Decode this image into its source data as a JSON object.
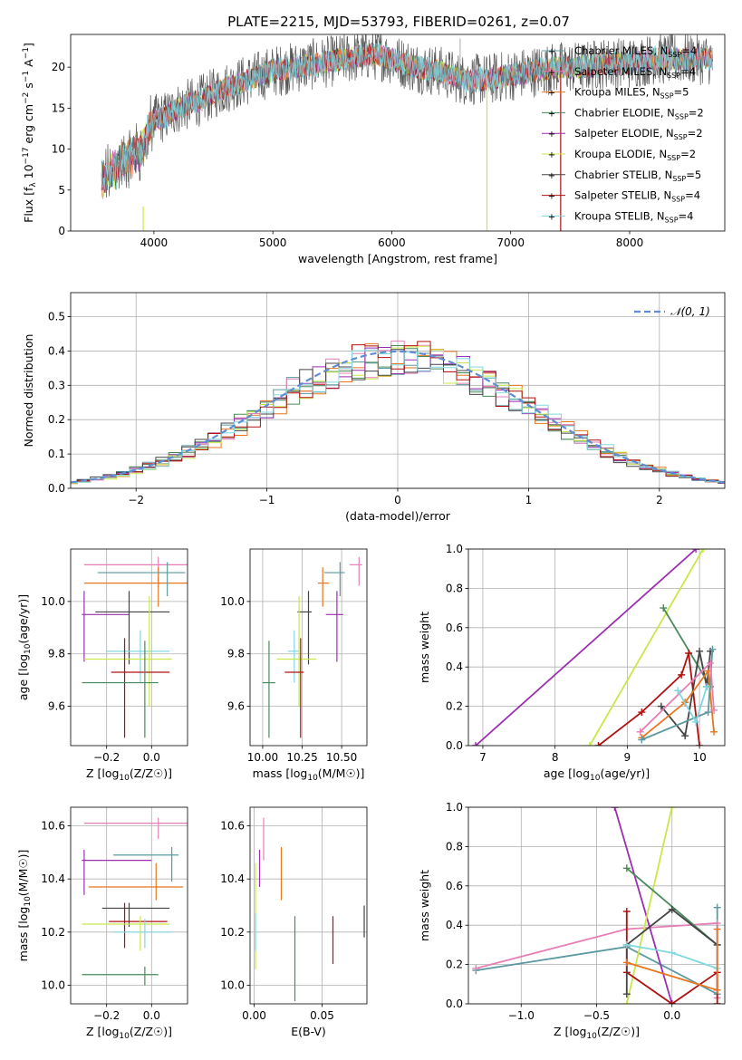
{
  "figure": {
    "title": "PLATE=2215, MJD=53793, FIBERID=0261, z=0.07"
  },
  "colors": {
    "Chabrier MILES": "#5b9aa0",
    "Salpeter MILES": "#e67fb6",
    "Kroupa MILES": "#e8761f",
    "Chabrier ELODIE": "#4a8a5a",
    "Salpeter ELODIE": "#9b2fb0",
    "Kroupa ELODIE": "#c8e84a",
    "Chabrier STELIB": "#444444",
    "Salpeter STELIB": "#b01010",
    "Kroupa STELIB": "#80d8e0",
    "normal": "#5f8dd3"
  },
  "chart_data": [
    {
      "id": "spectrum",
      "type": "line",
      "title": "PLATE=2215, MJD=53793, FIBERID=0261, z=0.07",
      "xlabel": "wavelength [Angstrom, rest frame]",
      "ylabel": "Flux [f_λ 10^-17 erg cm^-2 s^-1 A^-1]",
      "xlim": [
        3300,
        8800
      ],
      "ylim": [
        0,
        24
      ],
      "xticks": [
        4000,
        5000,
        6000,
        7000,
        8000
      ],
      "yticks": [
        0,
        5,
        10,
        15,
        20
      ],
      "grid": false,
      "legend_position": "upper-right",
      "legend": [
        {
          "model": "Chabrier MILES",
          "label": "Chabrier MILES, N",
          "nssp": "=4"
        },
        {
          "model": "Salpeter MILES",
          "label": "Salpeter MILES, N",
          "nssp": "=4"
        },
        {
          "model": "Kroupa MILES",
          "label": "Kroupa MILES, N",
          "nssp": "=5"
        },
        {
          "model": "Chabrier ELODIE",
          "label": "Chabrier ELODIE, N",
          "nssp": "=2"
        },
        {
          "model": "Salpeter ELODIE",
          "label": "Salpeter ELODIE, N",
          "nssp": "=2"
        },
        {
          "model": "Kroupa ELODIE",
          "label": "Kroupa ELODIE, N",
          "nssp": "=2"
        },
        {
          "model": "Chabrier STELIB",
          "label": "Chabrier STELIB, N",
          "nssp": "=5"
        },
        {
          "model": "Salpeter STELIB",
          "label": "Salpeter STELIB, N",
          "nssp": "=4"
        },
        {
          "model": "Kroupa STELIB",
          "label": "Kroupa STELIB, N",
          "nssp": "=4"
        }
      ],
      "continuum": {
        "x": [
          3550,
          3700,
          3900,
          4000,
          4100,
          4200,
          4400,
          4600,
          4800,
          5000,
          5200,
          5400,
          5600,
          5800,
          5900,
          6000,
          6200,
          6400,
          6600,
          6800,
          7000,
          7200,
          7400,
          7600,
          7800,
          8000,
          8200,
          8400,
          8700
        ],
        "y": [
          6,
          8,
          10,
          13.5,
          14,
          15,
          16,
          17.5,
          18.5,
          19.5,
          20,
          20.5,
          21,
          21.5,
          21.5,
          21,
          20,
          19.5,
          18.5,
          18.5,
          19,
          19.5,
          20,
          20,
          20.5,
          20.5,
          21,
          21,
          21
        ]
      }
    },
    {
      "id": "residuals",
      "type": "histogram",
      "xlabel": "(data-model)/error",
      "ylabel": "Normed distribution",
      "xlim": [
        -2.5,
        2.5
      ],
      "ylim": [
        0,
        0.57
      ],
      "xticks": [
        -2,
        -1,
        0,
        1,
        2
      ],
      "yticks": [
        0.0,
        0.1,
        0.2,
        0.3,
        0.4,
        0.5
      ],
      "grid": true,
      "legend_position": "upper-right",
      "legend_label": "𝒩(0, 1)",
      "bin_width": 0.1
    },
    {
      "id": "age_vs_Z",
      "type": "scatter-errorbar",
      "xlabel": "Z [log10(Z/Z☉)]",
      "ylabel": "age  [log10(age/yr)]",
      "xlim": [
        -0.36,
        0.16
      ],
      "ylim": [
        9.45,
        10.2
      ],
      "xticks": [
        -0.2,
        0.0
      ],
      "yticks": [
        9.6,
        9.8,
        10.0
      ],
      "grid": true,
      "points": [
        {
          "model": "Salpeter MILES",
          "x": 0.03,
          "y": 10.14,
          "xerr": [
            0.33,
            0.15
          ],
          "yerr": [
            0.08,
            0.03
          ]
        },
        {
          "model": "Kroupa MILES",
          "x": 0.03,
          "y": 10.07,
          "xerr": [
            0.33,
            0.13
          ],
          "yerr": [
            0.09,
            0.06
          ]
        },
        {
          "model": "Chabrier MILES",
          "x": 0.07,
          "y": 10.11,
          "xerr": [
            0.31,
            0.08
          ],
          "yerr": [
            0.09,
            0.04
          ]
        },
        {
          "model": "Salpeter ELODIE",
          "x": -0.3,
          "y": 9.95,
          "xerr": [
            0.01,
            0.2
          ],
          "yerr": [
            0.18,
            0.09
          ]
        },
        {
          "model": "Chabrier STELIB",
          "x": -0.1,
          "y": 9.96,
          "xerr": [
            0.15,
            0.18
          ],
          "yerr": [
            0.2,
            0.08
          ]
        },
        {
          "model": "Kroupa STELIB",
          "x": -0.05,
          "y": 9.81,
          "xerr": [
            0.15,
            0.13
          ],
          "yerr": [
            0.12,
            0.08
          ]
        },
        {
          "model": "Kroupa ELODIE",
          "x": -0.01,
          "y": 9.78,
          "xerr": [
            0.29,
            0.1
          ],
          "yerr": [
            0.18,
            0.24
          ]
        },
        {
          "model": "Salpeter STELIB",
          "x": -0.12,
          "y": 9.73,
          "xerr": [
            0.06,
            0.2
          ],
          "yerr": [
            0.25,
            0.13
          ]
        },
        {
          "model": "Chabrier ELODIE",
          "x": -0.03,
          "y": 9.69,
          "xerr": [
            0.28,
            0.06
          ],
          "yerr": [
            0.21,
            0.16
          ]
        }
      ]
    },
    {
      "id": "age_vs_mass",
      "type": "scatter-errorbar",
      "xlabel": "mass [log10(M/M☉)]",
      "ylabel": "",
      "xlim": [
        9.92,
        10.66
      ],
      "ylim": [
        9.45,
        10.2
      ],
      "xticks": [
        10.0,
        10.25,
        10.5
      ],
      "yticks": [
        9.6,
        9.8,
        10.0
      ],
      "grid": true,
      "points": [
        {
          "model": "Salpeter MILES",
          "x": 10.61,
          "y": 10.14,
          "xerr": [
            0.06,
            0.02
          ],
          "yerr": [
            0.08,
            0.03
          ]
        },
        {
          "model": "Chabrier MILES",
          "x": 10.49,
          "y": 10.11,
          "xerr": [
            0.1,
            0.03
          ],
          "yerr": [
            0.09,
            0.04
          ]
        },
        {
          "model": "Kroupa MILES",
          "x": 10.38,
          "y": 10.07,
          "xerr": [
            0.03,
            0.04
          ],
          "yerr": [
            0.09,
            0.06
          ]
        },
        {
          "model": "Salpeter ELODIE",
          "x": 10.47,
          "y": 9.95,
          "xerr": [
            0.07,
            0.04
          ],
          "yerr": [
            0.18,
            0.09
          ]
        },
        {
          "model": "Chabrier STELIB",
          "x": 10.29,
          "y": 9.96,
          "xerr": [
            0.07,
            0.02
          ],
          "yerr": [
            0.2,
            0.08
          ]
        },
        {
          "model": "Kroupa STELIB",
          "x": 10.2,
          "y": 9.81,
          "xerr": [
            0.04,
            0.03
          ],
          "yerr": [
            0.12,
            0.08
          ]
        },
        {
          "model": "Kroupa ELODIE",
          "x": 10.23,
          "y": 9.78,
          "xerr": [
            0.14,
            0.11
          ],
          "yerr": [
            0.18,
            0.24
          ]
        },
        {
          "model": "Salpeter STELIB",
          "x": 10.24,
          "y": 9.73,
          "xerr": [
            0.1,
            0.02
          ],
          "yerr": [
            0.25,
            0.13
          ]
        },
        {
          "model": "Chabrier ELODIE",
          "x": 10.04,
          "y": 9.69,
          "xerr": [
            0.04,
            0.04
          ],
          "yerr": [
            0.21,
            0.16
          ]
        }
      ]
    },
    {
      "id": "weight_vs_age",
      "type": "line",
      "xlabel": "age  [log10(age/yr)]",
      "ylabel": "mass weight",
      "xlim": [
        6.8,
        10.35
      ],
      "ylim": [
        0,
        1
      ],
      "xticks": [
        7,
        8,
        9,
        10
      ],
      "yticks": [
        0.0,
        0.2,
        0.4,
        0.6,
        0.8,
        1.0
      ],
      "grid": true,
      "series": [
        {
          "model": "Salpeter ELODIE",
          "x": [
            6.9,
            9.95
          ],
          "y": [
            0.0,
            1.0
          ]
        },
        {
          "model": "Kroupa ELODIE",
          "x": [
            8.48,
            10.05
          ],
          "y": [
            0.0,
            1.0
          ]
        },
        {
          "model": "Chabrier ELODIE",
          "x": [
            9.5,
            10.15
          ],
          "y": [
            0.7,
            0.3
          ]
        },
        {
          "model": "Salpeter STELIB",
          "x": [
            8.6,
            9.2,
            9.75,
            9.85,
            10.0
          ],
          "y": [
            0.0,
            0.17,
            0.36,
            0.47,
            0.0
          ]
        },
        {
          "model": "Chabrier STELIB",
          "x": [
            9.47,
            9.8,
            10.0,
            10.1,
            10.15
          ],
          "y": [
            0.2,
            0.05,
            0.48,
            0.3,
            0.48
          ]
        },
        {
          "model": "Kroupa MILES",
          "x": [
            9.2,
            9.8,
            10.12,
            10.2
          ],
          "y": [
            0.04,
            0.22,
            0.38,
            0.07
          ]
        },
        {
          "model": "Chabrier MILES",
          "x": [
            9.2,
            10.12,
            10.18
          ],
          "y": [
            0.03,
            0.17,
            0.49
          ]
        },
        {
          "model": "Salpeter MILES",
          "x": [
            9.18,
            10.15,
            10.2
          ],
          "y": [
            0.07,
            0.42,
            0.18
          ]
        },
        {
          "model": "Kroupa STELIB",
          "x": [
            9.7,
            9.95,
            10.1
          ],
          "y": [
            0.28,
            0.12,
            0.3
          ]
        }
      ]
    },
    {
      "id": "mass_vs_Z",
      "type": "scatter-errorbar",
      "xlabel": "Z [log10(Z/Z☉)]",
      "ylabel": "mass [log10(M/M☉)]",
      "xlim": [
        -0.36,
        0.16
      ],
      "ylim": [
        9.93,
        10.67
      ],
      "xticks": [
        -0.2,
        0.0
      ],
      "yticks": [
        10.0,
        10.2,
        10.4,
        10.6
      ],
      "grid": true,
      "points": [
        {
          "model": "Salpeter MILES",
          "x": 0.03,
          "y": 10.61,
          "xerr": [
            0.33,
            0.14
          ],
          "yerr": [
            0.06,
            0.02
          ]
        },
        {
          "model": "Chabrier MILES",
          "x": 0.09,
          "y": 10.49,
          "xerr": [
            0.26,
            0.03
          ],
          "yerr": [
            0.1,
            0.03
          ]
        },
        {
          "model": "Salpeter ELODIE",
          "x": -0.3,
          "y": 10.47,
          "xerr": [
            0.01,
            0.3
          ],
          "yerr": [
            0.13,
            0.04
          ]
        },
        {
          "model": "Kroupa MILES",
          "x": 0.02,
          "y": 10.37,
          "xerr": [
            0.3,
            0.12
          ],
          "yerr": [
            0.05,
            0.09
          ]
        },
        {
          "model": "Chabrier STELIB",
          "x": -0.1,
          "y": 10.29,
          "xerr": [
            0.12,
            0.18
          ],
          "yerr": [
            0.07,
            0.02
          ]
        },
        {
          "model": "Salpeter STELIB",
          "x": -0.12,
          "y": 10.24,
          "xerr": [
            0.07,
            0.19
          ],
          "yerr": [
            0.1,
            0.07
          ]
        },
        {
          "model": "Kroupa ELODIE",
          "x": -0.05,
          "y": 10.23,
          "xerr": [
            0.26,
            0.13
          ],
          "yerr": [
            0.1,
            0.03
          ]
        },
        {
          "model": "Kroupa STELIB",
          "x": -0.03,
          "y": 10.2,
          "xerr": [
            0.14,
            0.12
          ],
          "yerr": [
            0.06,
            0.05
          ]
        },
        {
          "model": "Chabrier ELODIE",
          "x": -0.03,
          "y": 10.04,
          "xerr": [
            0.28,
            0.06
          ],
          "yerr": [
            0.04,
            0.03
          ]
        }
      ]
    },
    {
      "id": "mass_vs_ebv",
      "type": "scatter-errorbar",
      "xlabel": "E(B-V)",
      "ylabel": "",
      "xlim": [
        -0.003,
        0.083
      ],
      "ylim": [
        9.93,
        10.67
      ],
      "xticks": [
        0.0,
        0.05
      ],
      "yticks": [
        10.0,
        10.2,
        10.4,
        10.6
      ],
      "grid": true,
      "points": [
        {
          "model": "Salpeter MILES",
          "x": 0.007,
          "y": 10.55,
          "yerr": [
            0.08,
            0.08
          ]
        },
        {
          "model": "Salpeter ELODIE",
          "x": 0.004,
          "y": 10.44,
          "yerr": [
            0.07,
            0.07
          ]
        },
        {
          "model": "Kroupa MILES",
          "x": 0.02,
          "y": 10.42,
          "yerr": [
            0.1,
            0.1
          ]
        },
        {
          "model": "Kroupa ELODIE",
          "x": 0.001,
          "y": 10.26,
          "yerr": [
            0.2,
            0.2
          ]
        },
        {
          "model": "Kroupa STELIB",
          "x": 0.001,
          "y": 10.2,
          "yerr": [
            0.07,
            0.07
          ]
        },
        {
          "model": "Chabrier ELODIE",
          "x": 0.03,
          "y": 10.1,
          "yerr": [
            0.16,
            0.16
          ]
        },
        {
          "model": "Salpeter STELIB",
          "x": 0.058,
          "y": 10.17,
          "yerr": [
            0.09,
            0.09
          ]
        },
        {
          "model": "Chabrier STELIB",
          "x": 0.081,
          "y": 10.24,
          "yerr": [
            0.06,
            0.06
          ]
        }
      ]
    },
    {
      "id": "weight_vs_Z",
      "type": "line",
      "xlabel": "Z [log10(Z/Z☉)]",
      "ylabel": "mass weight",
      "xlim": [
        -1.35,
        0.35
      ],
      "ylim": [
        0,
        1
      ],
      "xticks": [
        -1.0,
        -0.5,
        0.0
      ],
      "yticks": [
        0.0,
        0.2,
        0.4,
        0.6,
        0.8,
        1.0
      ],
      "grid": true,
      "series": [
        {
          "model": "Chabrier MILES",
          "x": [
            -1.3,
            -0.3,
            0.3,
            0.3
          ],
          "y": [
            0.17,
            0.29,
            0.05,
            0.49
          ]
        },
        {
          "model": "Salpeter MILES",
          "x": [
            -1.3,
            -0.3,
            0.3,
            0.3
          ],
          "y": [
            0.18,
            0.38,
            0.41,
            0.03
          ]
        },
        {
          "model": "Salpeter ELODIE",
          "x": [
            -0.38,
            0.0
          ],
          "y": [
            1.0,
            0.0
          ]
        },
        {
          "model": "Kroupa ELODIE",
          "x": [
            -0.3,
            0.0
          ],
          "y": [
            0.0,
            1.0
          ]
        },
        {
          "model": "Chabrier ELODIE",
          "x": [
            -0.3,
            0.3
          ],
          "y": [
            0.69,
            0.3
          ]
        },
        {
          "model": "Salpeter STELIB",
          "x": [
            -0.3,
            -0.3,
            0.0,
            0.3,
            0.3
          ],
          "y": [
            0.47,
            0.16,
            0.0,
            0.16,
            0.0
          ]
        },
        {
          "model": "Chabrier STELIB",
          "x": [
            -0.3,
            -0.3,
            0.0,
            0.3
          ],
          "y": [
            0.05,
            0.3,
            0.48,
            0.3
          ]
        },
        {
          "model": "Kroupa STELIB",
          "x": [
            -0.3,
            0.0,
            0.3
          ],
          "y": [
            0.3,
            0.26,
            0.18
          ]
        },
        {
          "model": "Kroupa MILES",
          "x": [
            -0.3,
            0.3,
            0.3
          ],
          "y": [
            0.21,
            0.07,
            0.38
          ]
        }
      ]
    }
  ]
}
